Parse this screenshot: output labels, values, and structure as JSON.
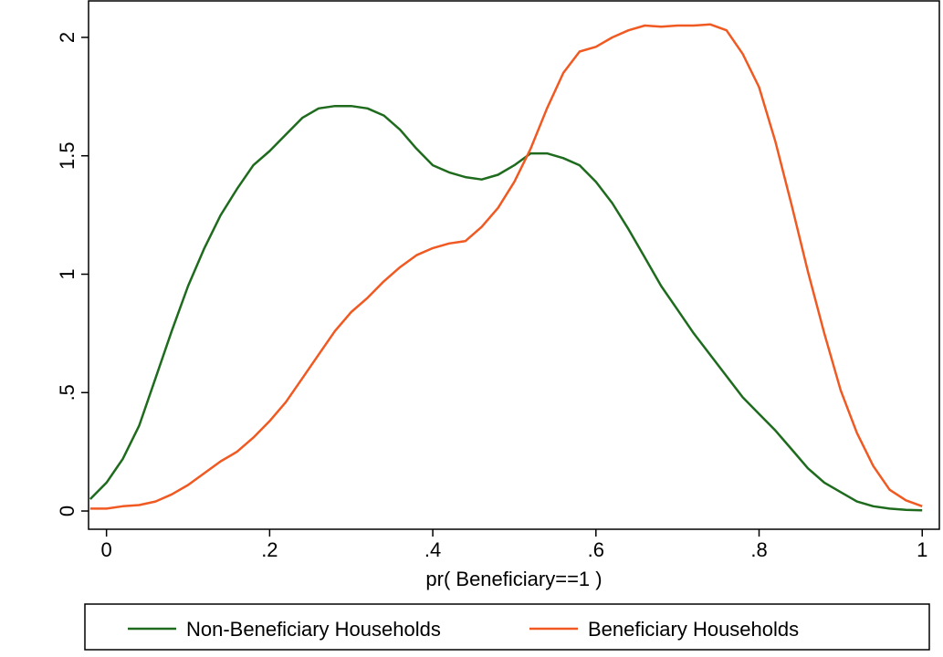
{
  "chart_data": {
    "type": "line",
    "xlabel": "pr( Beneficiary==1 )",
    "x": [
      -0.02,
      0,
      0.02,
      0.04,
      0.06,
      0.08,
      0.1,
      0.12,
      0.14,
      0.16,
      0.18,
      0.2,
      0.22,
      0.24,
      0.26,
      0.28,
      0.3,
      0.32,
      0.34,
      0.36,
      0.38,
      0.4,
      0.42,
      0.44,
      0.46,
      0.48,
      0.5,
      0.52,
      0.54,
      0.56,
      0.58,
      0.6,
      0.62,
      0.64,
      0.66,
      0.68,
      0.7,
      0.72,
      0.74,
      0.76,
      0.78,
      0.8,
      0.82,
      0.84,
      0.86,
      0.88,
      0.9,
      0.92,
      0.94,
      0.96,
      0.98,
      1
    ],
    "series": [
      {
        "name": "Non-Beneficiary Households",
        "color": "#1e6b1e",
        "values": [
          0.05,
          0.12,
          0.22,
          0.36,
          0.56,
          0.76,
          0.95,
          1.11,
          1.25,
          1.36,
          1.46,
          1.52,
          1.59,
          1.66,
          1.7,
          1.71,
          1.71,
          1.7,
          1.67,
          1.61,
          1.53,
          1.46,
          1.43,
          1.41,
          1.4,
          1.42,
          1.46,
          1.51,
          1.51,
          1.49,
          1.46,
          1.39,
          1.3,
          1.19,
          1.07,
          0.95,
          0.85,
          0.75,
          0.66,
          0.57,
          0.48,
          0.41,
          0.34,
          0.26,
          0.18,
          0.12,
          0.08,
          0.04,
          0.02,
          0.01,
          0.005,
          0.003
        ]
      },
      {
        "name": "Beneficiary Households",
        "color": "#f05a22",
        "values": [
          0.01,
          0.01,
          0.02,
          0.025,
          0.04,
          0.07,
          0.11,
          0.16,
          0.21,
          0.25,
          0.31,
          0.38,
          0.46,
          0.56,
          0.66,
          0.76,
          0.84,
          0.9,
          0.97,
          1.03,
          1.08,
          1.11,
          1.13,
          1.14,
          1.2,
          1.28,
          1.39,
          1.53,
          1.7,
          1.85,
          1.94,
          1.96,
          2.0,
          2.03,
          2.05,
          2.045,
          2.05,
          2.05,
          2.055,
          2.03,
          1.93,
          1.79,
          1.56,
          1.29,
          1.01,
          0.75,
          0.51,
          0.33,
          0.19,
          0.09,
          0.045,
          0.02
        ]
      }
    ],
    "xlim": [
      -0.022,
      1.021
    ],
    "ylim": [
      -0.077,
      2.154
    ],
    "xticks": [
      0,
      {
        "value": 0.2,
        "label": ".2"
      },
      {
        "value": 0.4,
        "label": ".4"
      },
      {
        "value": 0.6,
        "label": ".6"
      },
      {
        "value": 0.8,
        "label": ".8"
      },
      1
    ],
    "yticks": [
      0,
      {
        "value": 0.5,
        "label": ".5"
      },
      1,
      1.5,
      2
    ],
    "legend": "bottom"
  }
}
